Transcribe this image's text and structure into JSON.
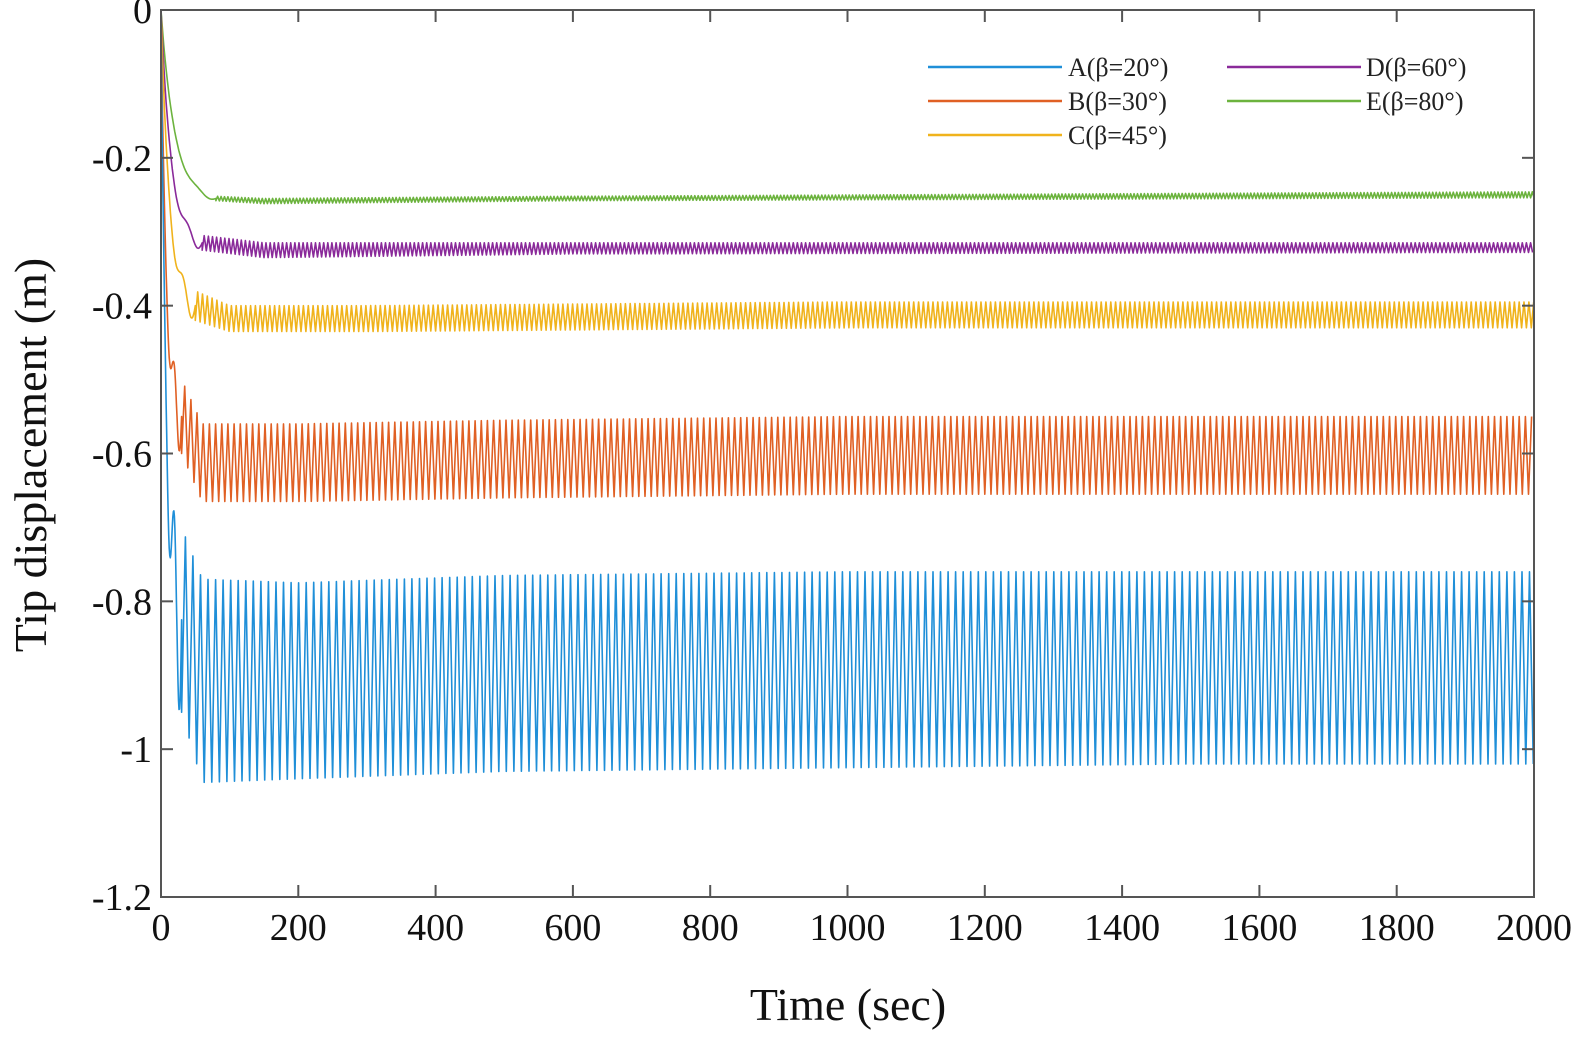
{
  "chart_data": {
    "type": "line",
    "title": "",
    "xlabel": "Time (sec)",
    "ylabel": "Tip displacement (m)",
    "xlim": [
      0,
      2000
    ],
    "ylim": [
      -1.2,
      0
    ],
    "xticks": [
      0,
      200,
      400,
      600,
      800,
      1000,
      1200,
      1400,
      1600,
      1800,
      2000
    ],
    "xtick_labels": [
      "0",
      "200",
      "400",
      "600",
      "800",
      "1000",
      "1200",
      "1400",
      "1600",
      "1800",
      "2000"
    ],
    "yticks": [
      0,
      -0.2,
      -0.4,
      -0.6,
      -0.8,
      -1,
      -1.2
    ],
    "ytick_labels": [
      "0",
      "-0.2",
      "-0.4",
      "-0.6",
      "-0.8",
      "-1",
      "-1.2"
    ],
    "grid": false,
    "legend_position": "top-right",
    "series": [
      {
        "name": "A(β=20°)",
        "color": "#1f8fd8",
        "settle_time": 30,
        "upper_envelope": [
          [
            30,
            -0.7
          ],
          [
            60,
            -0.77
          ],
          [
            200,
            -0.775
          ],
          [
            500,
            -0.765
          ],
          [
            1000,
            -0.76
          ],
          [
            1500,
            -0.76
          ],
          [
            2000,
            -0.76
          ]
        ],
        "lower_envelope": [
          [
            30,
            -0.95
          ],
          [
            60,
            -1.045
          ],
          [
            200,
            -1.04
          ],
          [
            500,
            -1.03
          ],
          [
            1000,
            -1.025
          ],
          [
            1500,
            -1.02
          ],
          [
            2000,
            -1.02
          ]
        ],
        "oscillation_period": 11
      },
      {
        "name": "B(β=30°)",
        "color": "#e06024",
        "settle_time": 40,
        "upper_envelope": [
          [
            30,
            -0.5
          ],
          [
            60,
            -0.56
          ],
          [
            200,
            -0.56
          ],
          [
            500,
            -0.555
          ],
          [
            1000,
            -0.55
          ],
          [
            1500,
            -0.55
          ],
          [
            2000,
            -0.55
          ]
        ],
        "lower_envelope": [
          [
            30,
            -0.6
          ],
          [
            60,
            -0.665
          ],
          [
            200,
            -0.665
          ],
          [
            500,
            -0.66
          ],
          [
            1000,
            -0.655
          ],
          [
            1500,
            -0.655
          ],
          [
            2000,
            -0.655
          ]
        ],
        "oscillation_period": 9
      },
      {
        "name": "C(β=45°)",
        "color": "#f0b31c",
        "settle_time": 50,
        "upper_envelope": [
          [
            50,
            -0.38
          ],
          [
            100,
            -0.4
          ],
          [
            300,
            -0.4
          ],
          [
            1000,
            -0.395
          ],
          [
            2000,
            -0.395
          ]
        ],
        "lower_envelope": [
          [
            50,
            -0.42
          ],
          [
            100,
            -0.435
          ],
          [
            300,
            -0.435
          ],
          [
            1000,
            -0.43
          ],
          [
            2000,
            -0.43
          ]
        ],
        "oscillation_period": 7
      },
      {
        "name": "D(β=60°)",
        "color": "#8a2a9a",
        "settle_time": 60,
        "upper_envelope": [
          [
            60,
            -0.305
          ],
          [
            150,
            -0.315
          ],
          [
            600,
            -0.315
          ],
          [
            2000,
            -0.315
          ]
        ],
        "lower_envelope": [
          [
            60,
            -0.325
          ],
          [
            150,
            -0.335
          ],
          [
            600,
            -0.33
          ],
          [
            2000,
            -0.328
          ]
        ],
        "oscillation_period": 6
      },
      {
        "name": "E(β=80°)",
        "color": "#6cb33e",
        "settle_time": 80,
        "upper_envelope": [
          [
            80,
            -0.252
          ],
          [
            150,
            -0.255
          ],
          [
            600,
            -0.252
          ],
          [
            2000,
            -0.246
          ]
        ],
        "lower_envelope": [
          [
            80,
            -0.258
          ],
          [
            150,
            -0.262
          ],
          [
            600,
            -0.258
          ],
          [
            2000,
            -0.254
          ]
        ],
        "oscillation_period": 5
      }
    ]
  }
}
